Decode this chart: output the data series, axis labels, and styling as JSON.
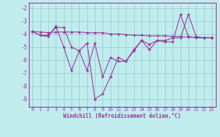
{
  "xlabel": "Windchill (Refroidissement éolien,°C)",
  "bg_color": "#c0ecee",
  "line_color": "#993399",
  "grid_color": "#99cccc",
  "ylim": [
    -9.6,
    -1.6
  ],
  "xlim": [
    -0.5,
    23.5
  ],
  "yticks": [
    -9,
    -8,
    -7,
    -6,
    -5,
    -4,
    -3,
    -2
  ],
  "xticks": [
    0,
    1,
    2,
    3,
    4,
    5,
    6,
    7,
    8,
    9,
    10,
    11,
    12,
    13,
    14,
    15,
    16,
    17,
    18,
    19,
    20,
    21,
    22,
    23
  ],
  "line1_y": [
    -3.8,
    -4.1,
    -4.1,
    -3.5,
    -3.5,
    -5.0,
    -5.3,
    -4.7,
    -9.0,
    -8.6,
    -7.3,
    -5.8,
    -6.1,
    -5.3,
    -4.5,
    -5.2,
    -4.5,
    -4.6,
    -4.6,
    -2.5,
    -4.2,
    -4.3,
    -4.3,
    -4.3
  ],
  "line2_y": [
    -3.8,
    -4.1,
    -4.2,
    -3.4,
    -5.0,
    -6.8,
    -5.3,
    -6.8,
    -4.7,
    -7.3,
    -5.8,
    -6.1,
    -6.1,
    -5.2,
    -4.5,
    -4.8,
    -4.5,
    -4.5,
    -4.3,
    -4.3,
    -2.5,
    -4.2,
    -4.3,
    -4.3
  ],
  "line3_y": [
    -3.8,
    -3.85,
    -3.9,
    -3.85,
    -3.85,
    -3.85,
    -3.85,
    -3.9,
    -3.9,
    -3.9,
    -4.0,
    -4.0,
    -4.05,
    -4.1,
    -4.1,
    -4.15,
    -4.15,
    -4.15,
    -4.2,
    -4.2,
    -4.25,
    -4.25,
    -4.3,
    -4.3
  ]
}
